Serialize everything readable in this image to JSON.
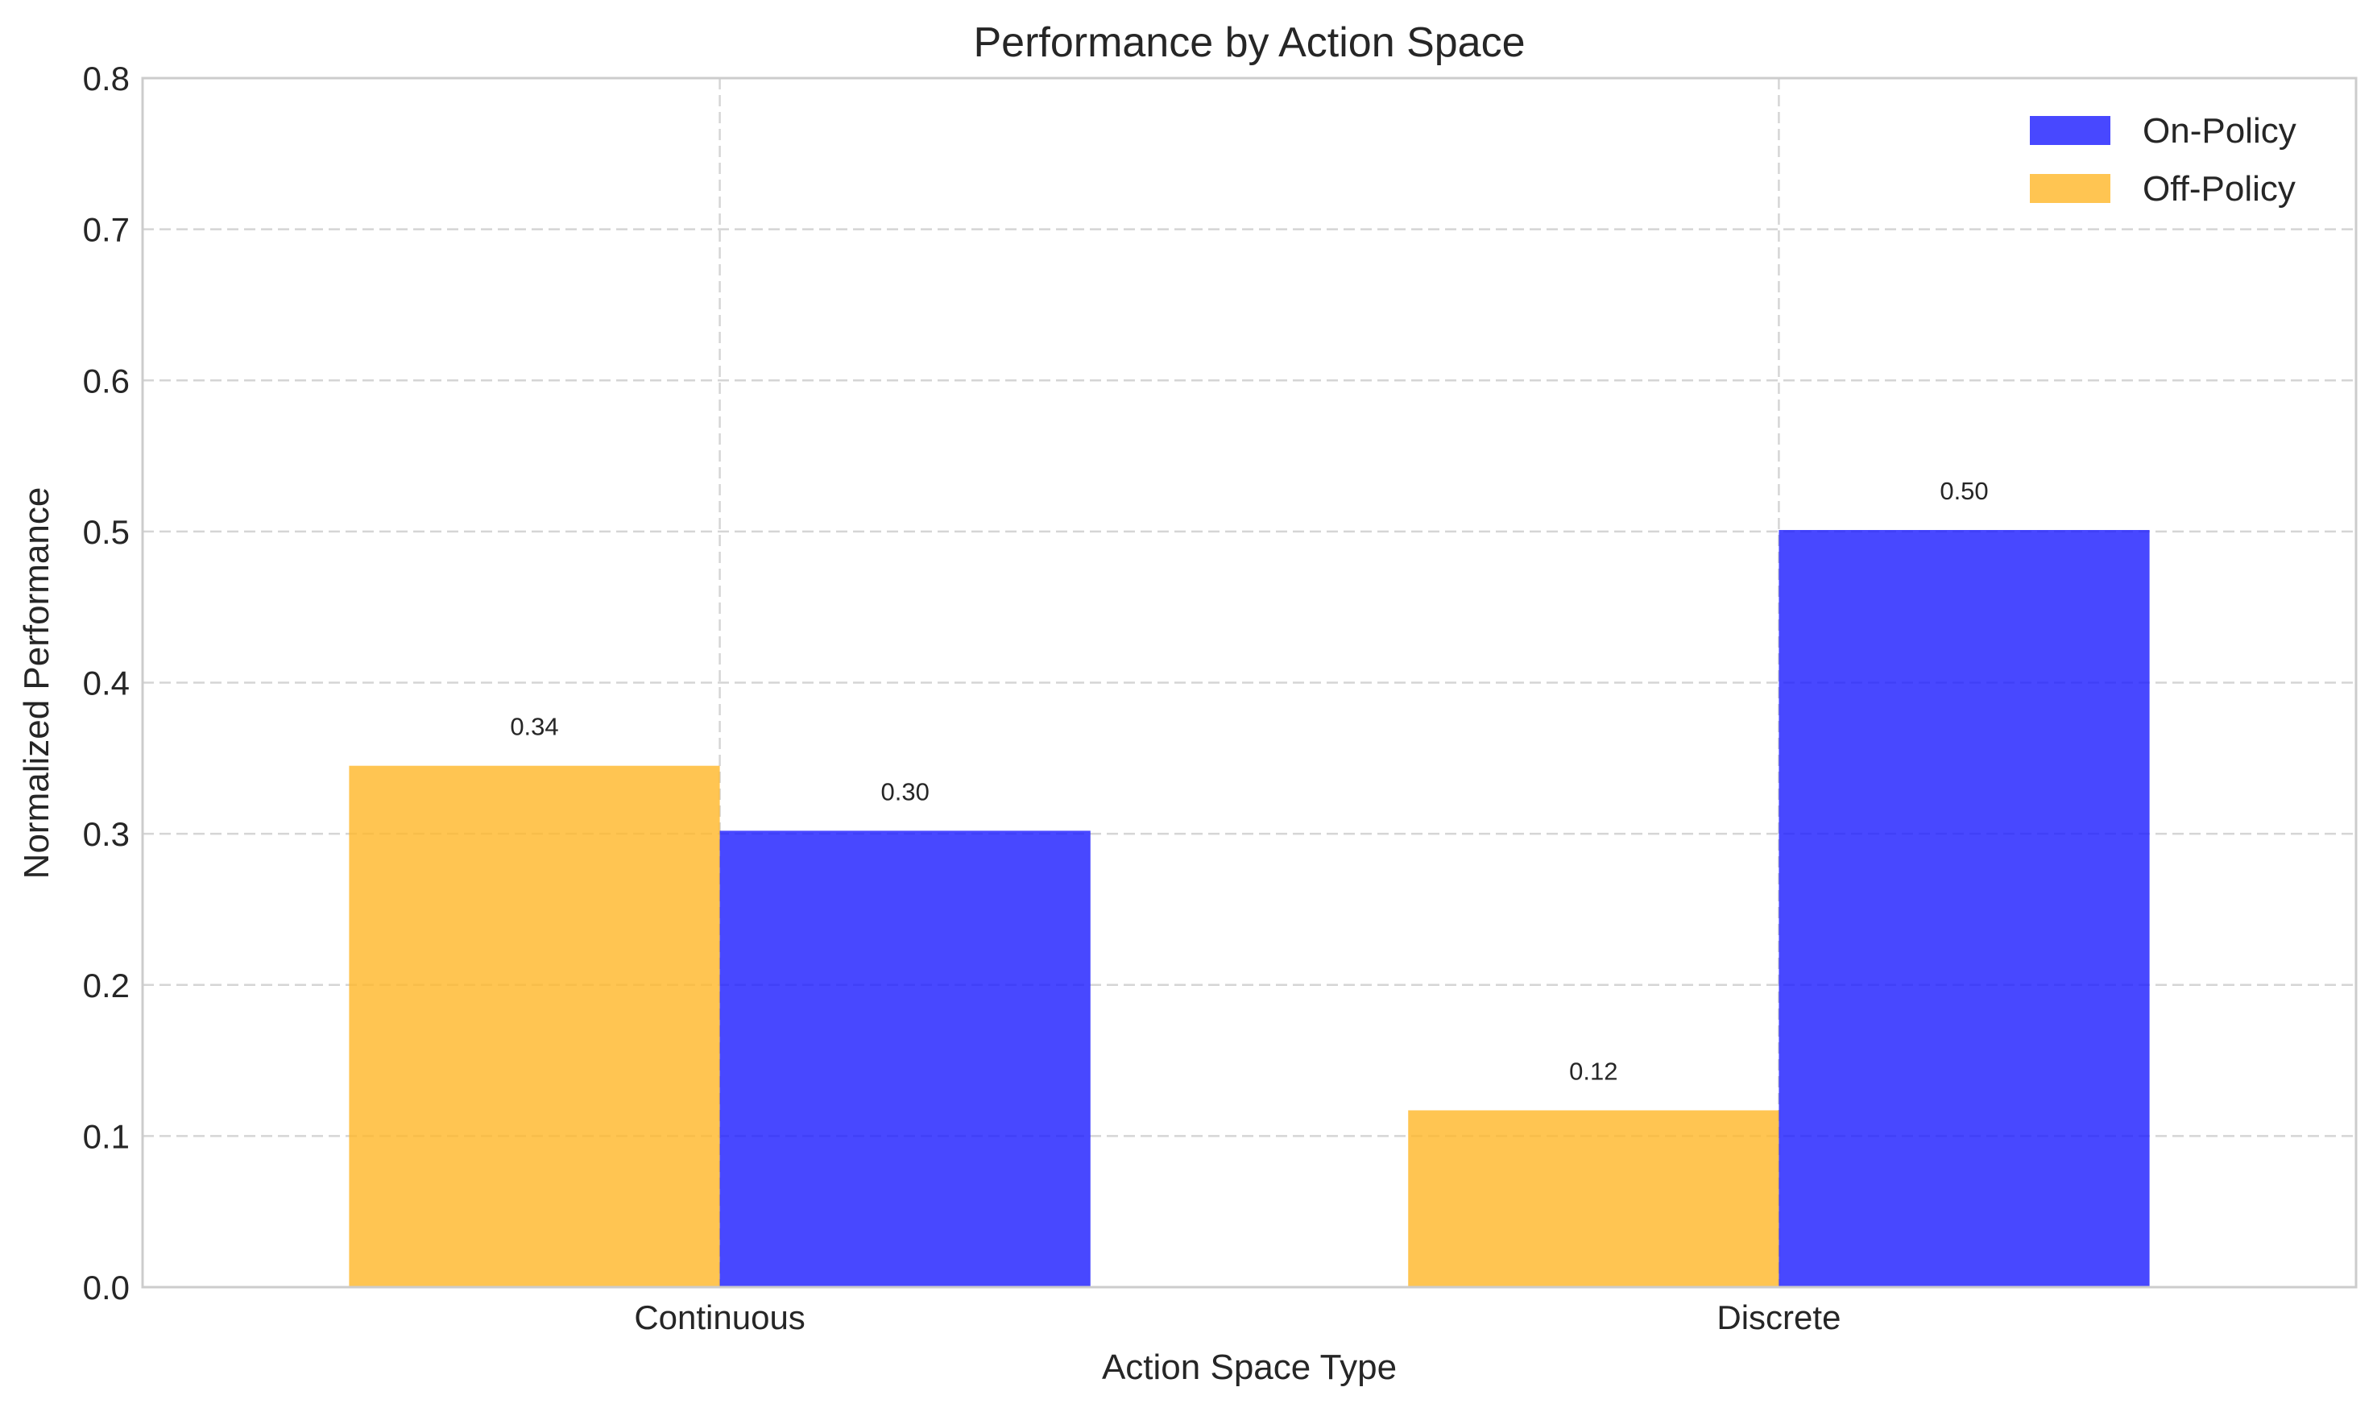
{
  "chart_data": {
    "type": "bar",
    "title": "Performance by Action Space",
    "xlabel": "Action Space Type",
    "ylabel": "Normalized Performance",
    "categories": [
      "Continuous",
      "Discrete"
    ],
    "series": [
      {
        "name": "Off-Policy",
        "values": [
          0.345,
          0.117
        ],
        "labels": [
          "0.34",
          "0.12"
        ],
        "color": "#ffb627"
      },
      {
        "name": "On-Policy",
        "values": [
          0.302,
          0.501
        ],
        "labels": [
          "0.30",
          "0.50"
        ],
        "color": "#1a1aff"
      }
    ],
    "legend_order": [
      "On-Policy",
      "Off-Policy"
    ],
    "legend_position": "top-right",
    "ylim": [
      0,
      0.8
    ],
    "yticks": [
      "0.0",
      "0.1",
      "0.2",
      "0.3",
      "0.4",
      "0.5",
      "0.6",
      "0.7",
      "0.8"
    ],
    "grid": true,
    "bar_opacity": 0.8
  }
}
